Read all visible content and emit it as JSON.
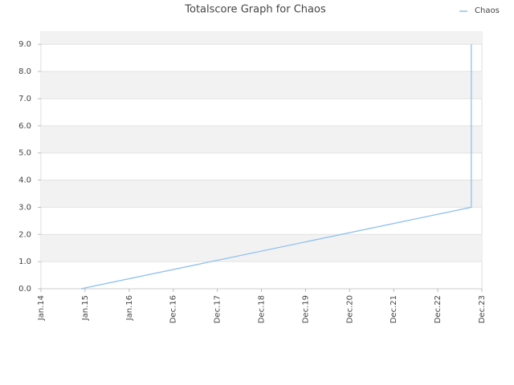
{
  "chart_data": {
    "type": "line",
    "title": "Totalscore Graph for Chaos",
    "x": [
      0.91,
      9.76,
      9.76
    ],
    "series": [
      {
        "name": "Chaos",
        "color": "#8fc1ee",
        "values": [
          0,
          3,
          9
        ]
      }
    ],
    "xlim": [
      0,
      10
    ],
    "xticks": [
      {
        "value": 0,
        "label": "Jan.14"
      },
      {
        "value": 1,
        "label": "Jan.15"
      },
      {
        "value": 2,
        "label": "Jan.16"
      },
      {
        "value": 3,
        "label": "Dec.16"
      },
      {
        "value": 4,
        "label": "Dec.17"
      },
      {
        "value": 5,
        "label": "Dec.18"
      },
      {
        "value": 6,
        "label": "Dec.19"
      },
      {
        "value": 7,
        "label": "Dec.20"
      },
      {
        "value": 8,
        "label": "Dec.21"
      },
      {
        "value": 9,
        "label": "Dec.22"
      },
      {
        "value": 10,
        "label": "Dec.23"
      }
    ],
    "ylim": [
      0,
      9.45
    ],
    "yticks": [
      {
        "value": 0,
        "label": "0.0"
      },
      {
        "value": 1,
        "label": "1.0"
      },
      {
        "value": 2,
        "label": "2.0"
      },
      {
        "value": 3,
        "label": "3.0"
      },
      {
        "value": 4,
        "label": "4.0"
      },
      {
        "value": 5,
        "label": "5.0"
      },
      {
        "value": 6,
        "label": "6.0"
      },
      {
        "value": 7,
        "label": "7.0"
      },
      {
        "value": 8,
        "label": "8.0"
      },
      {
        "value": 9,
        "label": "9.0"
      }
    ],
    "grid": true,
    "legend": "top-right"
  }
}
